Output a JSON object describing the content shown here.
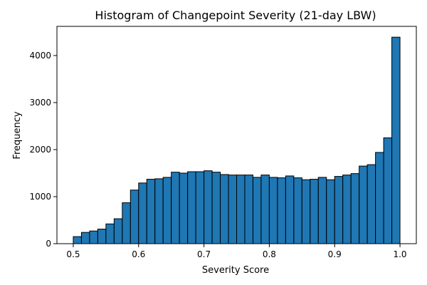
{
  "chart_data": {
    "type": "bar",
    "title": "Histogram of Changepoint Severity (21-day LBW)",
    "xlabel": "Severity Score",
    "ylabel": "Frequency",
    "xlim": [
      0.475,
      1.025
    ],
    "ylim": [
      0,
      4620
    ],
    "x_ticks": [
      0.5,
      0.6,
      0.7,
      0.8,
      0.9,
      1.0
    ],
    "x_tick_labels": [
      "0.5",
      "0.6",
      "0.7",
      "0.8",
      "0.9",
      "1.0"
    ],
    "y_ticks": [
      0,
      1000,
      2000,
      3000,
      4000
    ],
    "y_tick_labels": [
      "0",
      "1000",
      "2000",
      "3000",
      "4000"
    ],
    "grid": false,
    "legend": "none",
    "bar_color": "#1f77b4",
    "edge_color": "#000000",
    "bin_edges": [
      0.5,
      0.5125,
      0.525,
      0.5375,
      0.55,
      0.5625,
      0.575,
      0.5875,
      0.6,
      0.6125,
      0.625,
      0.6375,
      0.65,
      0.6625,
      0.675,
      0.6875,
      0.7,
      0.7125,
      0.725,
      0.7375,
      0.75,
      0.7625,
      0.775,
      0.7875,
      0.8,
      0.8125,
      0.825,
      0.8375,
      0.85,
      0.8625,
      0.875,
      0.8875,
      0.9,
      0.9125,
      0.925,
      0.9375,
      0.95,
      0.9625,
      0.975,
      0.9875,
      1.0
    ],
    "values": [
      150,
      240,
      270,
      310,
      420,
      530,
      870,
      1140,
      1290,
      1370,
      1380,
      1410,
      1520,
      1500,
      1530,
      1530,
      1550,
      1520,
      1470,
      1460,
      1460,
      1460,
      1410,
      1460,
      1410,
      1400,
      1440,
      1400,
      1360,
      1370,
      1410,
      1360,
      1430,
      1460,
      1490,
      1650,
      1680,
      1940,
      2250,
      4390
    ]
  }
}
